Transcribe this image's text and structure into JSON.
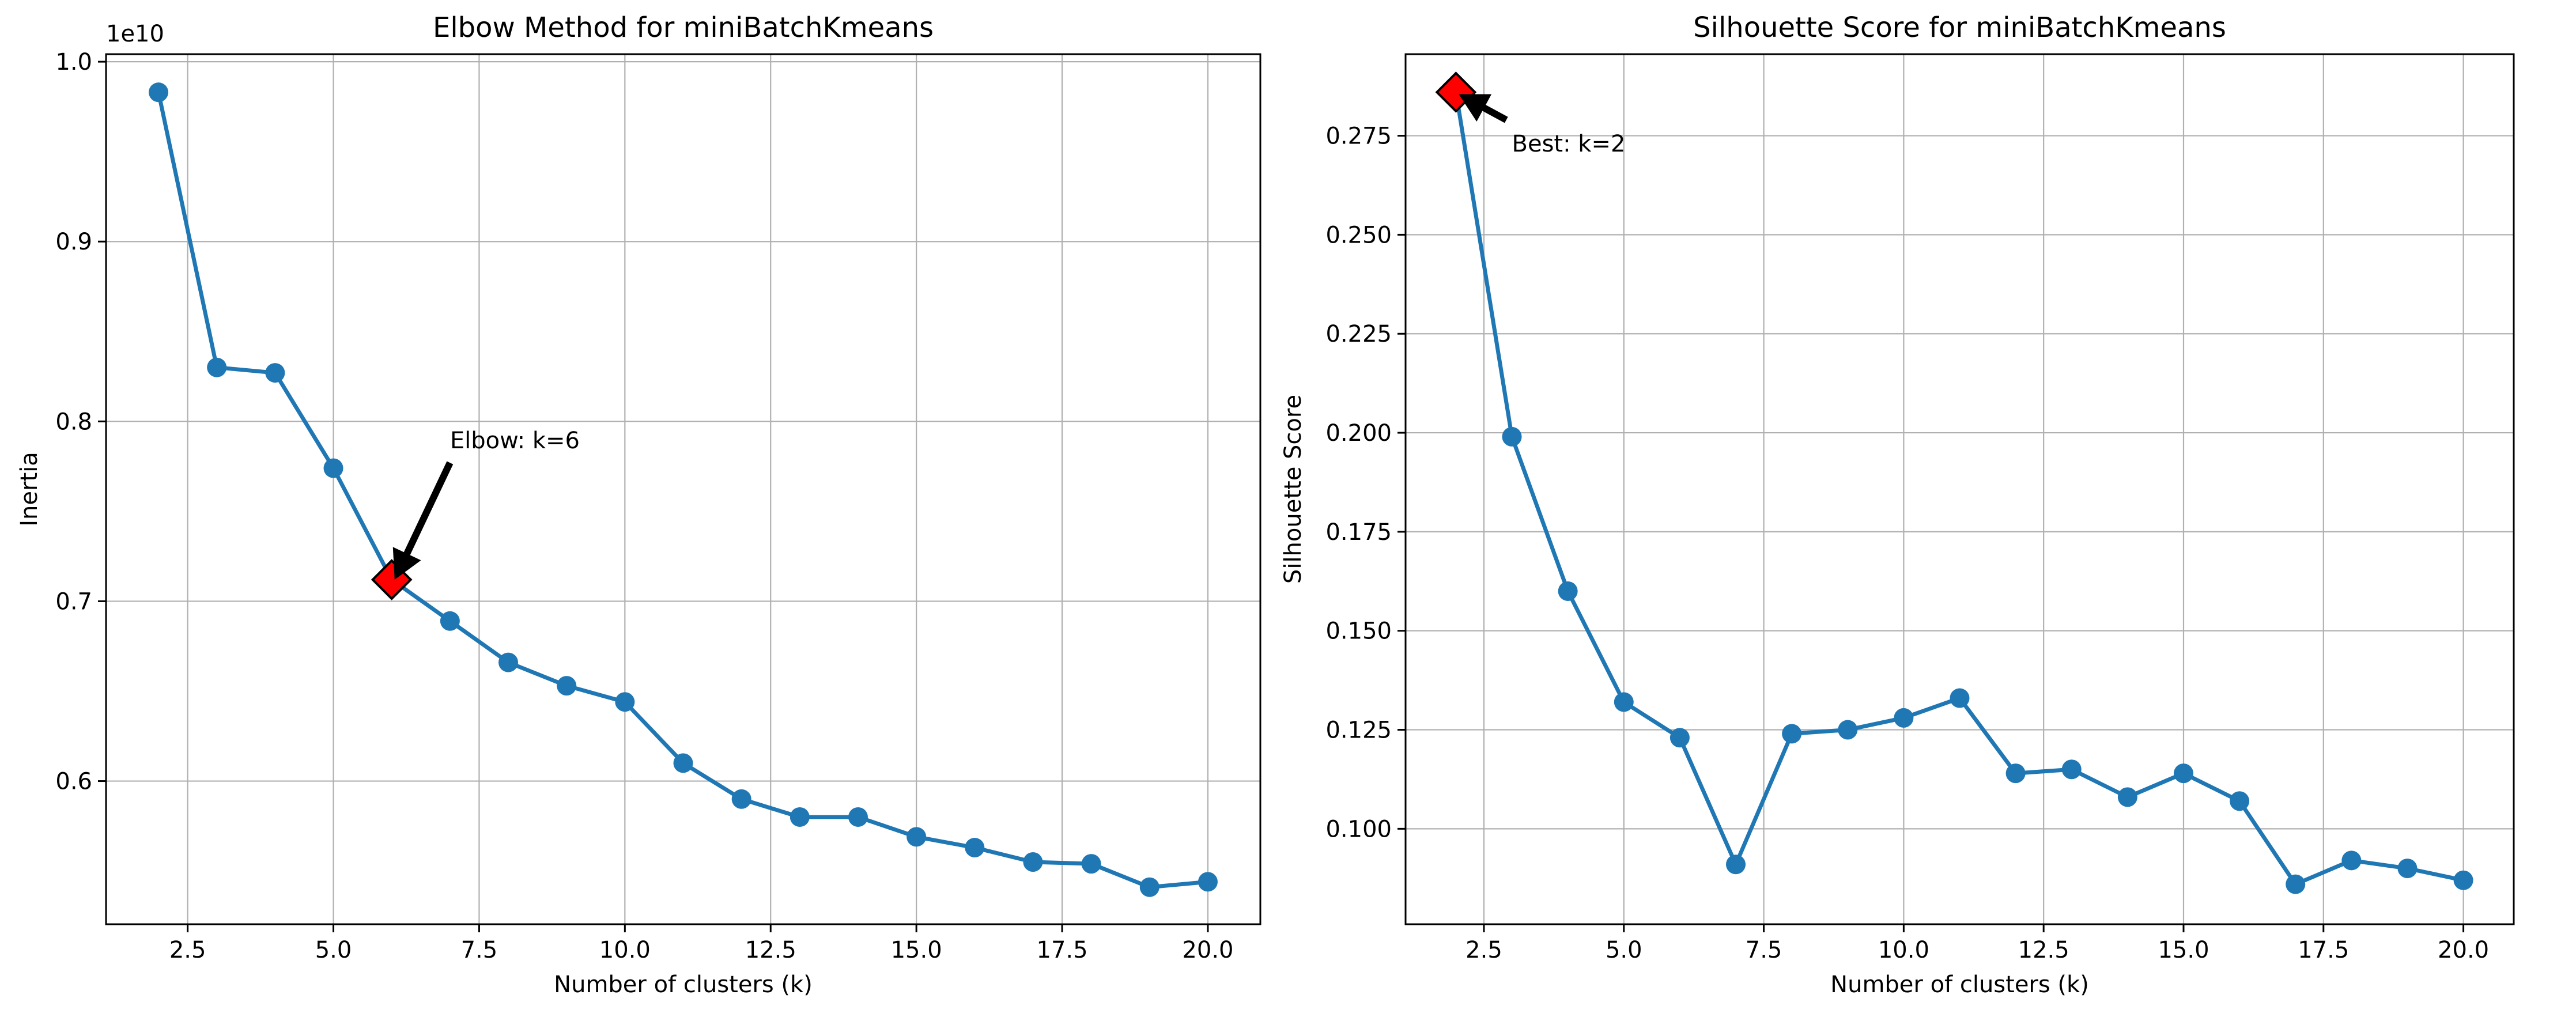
{
  "chart_data": [
    {
      "type": "line",
      "title": "Elbow Method for miniBatchKmeans",
      "xlabel": "Number of clusters (k)",
      "ylabel": "Inertia",
      "y_offset_label": "1e10",
      "xlim": [
        1.1,
        20.9
      ],
      "ylim": [
        0.5204,
        1.0042
      ],
      "x_ticks": [
        2.5,
        5.0,
        7.5,
        10.0,
        12.5,
        15.0,
        17.5,
        20.0
      ],
      "x_tick_labels": [
        "2.5",
        "5.0",
        "7.5",
        "10.0",
        "12.5",
        "15.0",
        "17.5",
        "20.0"
      ],
      "y_ticks": [
        0.6,
        0.7,
        0.8,
        0.9,
        1.0
      ],
      "y_tick_labels": [
        "0.6",
        "0.7",
        "0.8",
        "0.9",
        "1.0"
      ],
      "grid": true,
      "series": [
        {
          "x": [
            2,
            3,
            4,
            5,
            6,
            7,
            8,
            9,
            10,
            11,
            12,
            13,
            14,
            15,
            16,
            17,
            18,
            19,
            20
          ],
          "y": [
            0.983,
            0.83,
            0.827,
            0.774,
            0.712,
            0.689,
            0.666,
            0.653,
            0.644,
            0.61,
            0.59,
            0.58,
            0.58,
            0.569,
            0.563,
            0.555,
            0.554,
            0.541,
            0.544
          ]
        }
      ],
      "highlight": {
        "x": 6,
        "y": 0.712
      },
      "annotation": {
        "text": "Elbow: k=6",
        "text_x": 7.0,
        "text_y": 0.785,
        "arrow_tail": [
          7.0,
          0.777
        ],
        "arrow_head": [
          6.05,
          0.712
        ]
      }
    },
    {
      "type": "line",
      "title": "Silhouette Score for miniBatchKmeans",
      "xlabel": "Number of clusters (k)",
      "ylabel": "Silhouette Score",
      "xlim": [
        1.1,
        20.9
      ],
      "ylim": [
        0.0759,
        0.2956
      ],
      "x_ticks": [
        2.5,
        5.0,
        7.5,
        10.0,
        12.5,
        15.0,
        17.5,
        20.0
      ],
      "x_tick_labels": [
        "2.5",
        "5.0",
        "7.5",
        "10.0",
        "12.5",
        "15.0",
        "17.5",
        "20.0"
      ],
      "y_ticks": [
        0.1,
        0.125,
        0.15,
        0.175,
        0.2,
        0.225,
        0.25,
        0.275
      ],
      "y_tick_labels": [
        "0.100",
        "0.125",
        "0.150",
        "0.175",
        "0.200",
        "0.225",
        "0.250",
        "0.275"
      ],
      "grid": true,
      "series": [
        {
          "x": [
            2,
            3,
            4,
            5,
            6,
            7,
            8,
            9,
            10,
            11,
            12,
            13,
            14,
            15,
            16,
            17,
            18,
            19,
            20
          ],
          "y": [
            0.286,
            0.199,
            0.16,
            0.132,
            0.123,
            0.091,
            0.124,
            0.125,
            0.128,
            0.133,
            0.114,
            0.115,
            0.108,
            0.114,
            0.107,
            0.086,
            0.092,
            0.09,
            0.087
          ]
        }
      ],
      "highlight": {
        "x": 2,
        "y": 0.286
      },
      "annotation": {
        "text": "Best: k=2",
        "text_x": 3.0,
        "text_y": 0.271,
        "arrow_tail": [
          2.9,
          0.279
        ],
        "arrow_head": [
          2.05,
          0.2855
        ]
      }
    }
  ],
  "colors": {
    "line": "#1f77b4",
    "marker": "#1f77b4",
    "highlight_fill": "#ff0000",
    "highlight_edge": "#000000",
    "grid": "#b0b0b0",
    "axes": "#000000",
    "arrow": "#000000"
  }
}
